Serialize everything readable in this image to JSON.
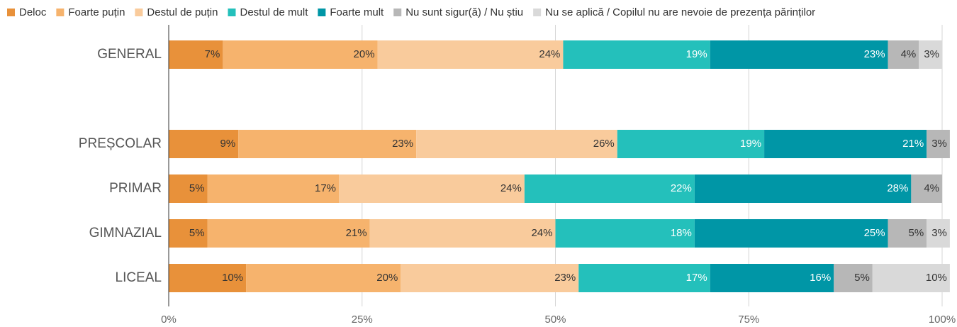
{
  "chart_data": {
    "type": "stacked_barh",
    "categories": [
      "GENERAL",
      null,
      "PREȘCOLAR",
      "PRIMAR",
      "GIMNAZIAL",
      "LICEAL"
    ],
    "series": [
      {
        "name": "Deloc",
        "color": "#e8913a",
        "label_color": "#333333",
        "values": [
          7,
          null,
          9,
          5,
          5,
          10
        ],
        "value_labels": [
          "7%",
          null,
          "9%",
          "5%",
          "5%",
          "10%"
        ]
      },
      {
        "name": "Foarte puțin",
        "color": "#f6b36d",
        "label_color": "#333333",
        "values": [
          20,
          null,
          23,
          17,
          21,
          20
        ],
        "value_labels": [
          "20%",
          null,
          "23%",
          "17%",
          "21%",
          "20%"
        ]
      },
      {
        "name": "Destul de puțin",
        "color": "#f9cb9c",
        "label_color": "#333333",
        "values": [
          24,
          null,
          26,
          24,
          24,
          23
        ],
        "value_labels": [
          "24%",
          null,
          "26%",
          "24%",
          "24%",
          "23%"
        ]
      },
      {
        "name": "Destul de mult",
        "color": "#24c0bb",
        "label_color": "#ffffff",
        "values": [
          19,
          null,
          19,
          22,
          18,
          17
        ],
        "value_labels": [
          "19%",
          null,
          "19%",
          "22%",
          "18%",
          "17%"
        ]
      },
      {
        "name": "Foarte mult",
        "color": "#0096a6",
        "label_color": "#ffffff",
        "values": [
          23,
          null,
          21,
          28,
          25,
          16
        ],
        "value_labels": [
          "23%",
          null,
          "21%",
          "28%",
          "25%",
          "16%"
        ]
      },
      {
        "name": "Nu sunt sigur(ă) / Nu știu",
        "color": "#b7b7b7",
        "label_color": "#333333",
        "values": [
          4,
          null,
          3,
          4,
          5,
          5
        ],
        "value_labels": [
          "4%",
          null,
          "3%",
          "4%",
          "5%",
          "5%"
        ]
      },
      {
        "name": "Nu se aplică / Copilul nu are nevoie de prezența părinților",
        "color": "#d9d9d9",
        "label_color": "#333333",
        "values": [
          3,
          null,
          null,
          null,
          3,
          10
        ],
        "value_labels": [
          "3%",
          null,
          null,
          null,
          "3%",
          "10%"
        ]
      }
    ],
    "xlim": [
      0,
      100
    ],
    "xticks": [
      {
        "value": 0,
        "label": "0%"
      },
      {
        "value": 25,
        "label": "25%"
      },
      {
        "value": 50,
        "label": "50%"
      },
      {
        "value": 75,
        "label": "75%"
      },
      {
        "value": 100,
        "label": "100%"
      }
    ],
    "grid": true,
    "legend": "top"
  }
}
